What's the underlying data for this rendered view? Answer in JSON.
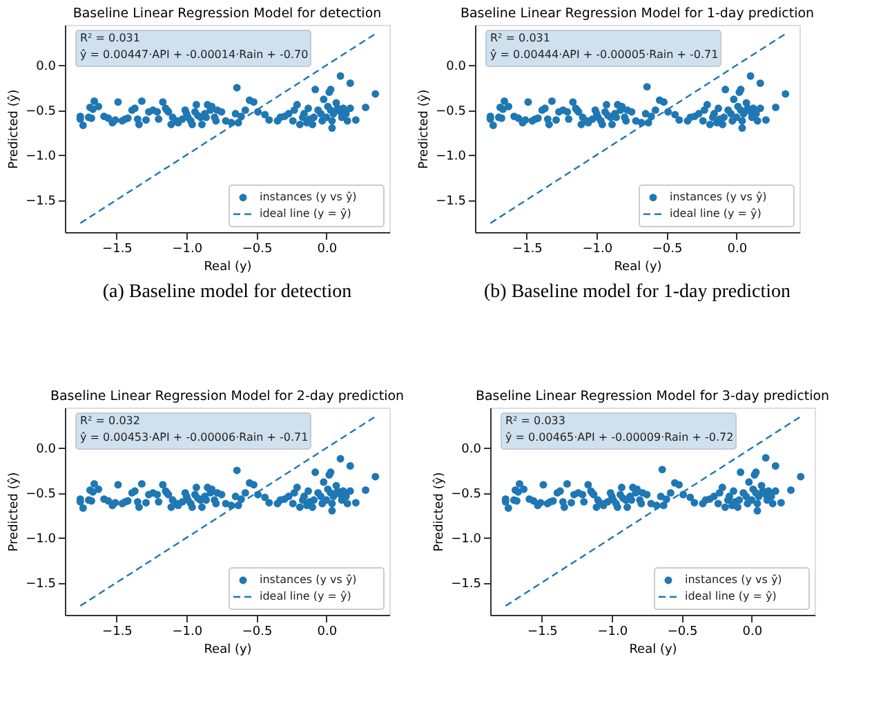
{
  "chart_data": [
    {
      "type": "scatter",
      "title": "Baseline Linear Regression Model for detection",
      "xlabel": "Real (y)",
      "ylabel": "Predicted (ŷ)",
      "xlim": [
        -1.87,
        0.45
      ],
      "ylim": [
        -1.86,
        0.45
      ],
      "xticks": [
        {
          "value": -1.5,
          "label": "−1.5"
        },
        {
          "value": -1.0,
          "label": "−1.0"
        },
        {
          "value": -0.5,
          "label": "−0.5"
        },
        {
          "value": 0,
          "label": "0.0"
        }
      ],
      "yticks": [
        {
          "value": 0,
          "label": "0.0"
        },
        {
          "value": -0.5,
          "label": "−0.5"
        },
        {
          "value": -1.0,
          "label": "−1.0"
        },
        {
          "value": -1.5,
          "label": "−1.5"
        }
      ],
      "legend": "bottom right",
      "grid": false,
      "annotations": [
        "R² = 0.031",
        "ŷ = 0.00447·API + -0.00014·Rain + -0.70",
        "(a) Baseline model for detection"
      ],
      "series": [
        {
          "name": "instances (y vs ŷ)",
          "type": "scatter",
          "color": "#1f77b4",
          "marker": "circle",
          "x": [
            -1.76,
            -1.74,
            -1.76,
            -1.7,
            -1.68,
            -1.66,
            -1.69,
            -1.67,
            -1.63,
            -1.59,
            -1.56,
            -1.53,
            -1.49,
            -1.51,
            -1.46,
            -1.44,
            -1.42,
            -1.39,
            -1.37,
            -1.35,
            -1.34,
            -1.32,
            -1.29,
            -1.27,
            -1.24,
            -1.21,
            -1.2,
            -1.17,
            -1.15,
            -1.14,
            -1.13,
            -1.11,
            -1.1,
            -1.07,
            -1.06,
            -1.03,
            -1.01,
            -1.0,
            -0.99,
            -0.97,
            -0.96,
            -0.94,
            -0.93,
            -0.92,
            -0.9,
            -0.89,
            -0.87,
            -0.86,
            -0.85,
            -0.83,
            -0.82,
            -0.8,
            -0.79,
            -0.78,
            -0.75,
            -0.72,
            -0.68,
            -0.65,
            -0.64,
            -0.63,
            -0.61,
            -0.58,
            -0.55,
            -0.52,
            -0.49,
            -0.44,
            -0.41,
            -0.35,
            -0.33,
            -0.3,
            -0.27,
            -0.24,
            -0.23,
            -0.21,
            -0.19,
            -0.17,
            -0.16,
            -0.14,
            -0.13,
            -0.12,
            -0.1,
            -0.09,
            -0.08,
            -0.06,
            -0.04,
            -0.03,
            -0.02,
            0.0,
            0.01,
            0.02,
            0.03,
            0.03,
            0.04,
            0.04,
            0.05,
            0.07,
            0.08,
            0.1,
            0.1,
            0.11,
            0.12,
            0.14,
            0.15,
            0.17,
            0.17,
            0.21,
            0.28,
            0.35
          ],
          "values": [
            -0.57,
            -0.67,
            -0.6,
            -0.58,
            -0.59,
            -0.4,
            -0.47,
            -0.49,
            -0.46,
            -0.57,
            -0.59,
            -0.64,
            -0.41,
            -0.61,
            -0.62,
            -0.6,
            -0.59,
            -0.5,
            -0.48,
            -0.6,
            -0.66,
            -0.4,
            -0.61,
            -0.52,
            -0.5,
            -0.52,
            -0.6,
            -0.41,
            -0.48,
            -0.5,
            -0.52,
            -0.66,
            -0.58,
            -0.62,
            -0.64,
            -0.6,
            -0.5,
            -0.54,
            -0.58,
            -0.62,
            -0.66,
            -0.52,
            -0.44,
            -0.56,
            -0.58,
            -0.66,
            -0.54,
            -0.58,
            -0.44,
            -0.5,
            -0.46,
            -0.58,
            -0.62,
            -0.5,
            -0.52,
            -0.62,
            -0.64,
            -0.54,
            -0.25,
            -0.64,
            -0.57,
            -0.5,
            -0.39,
            -0.41,
            -0.52,
            -0.55,
            -0.61,
            -0.62,
            -0.58,
            -0.57,
            -0.54,
            -0.62,
            -0.5,
            -0.44,
            -0.66,
            -0.58,
            -0.54,
            -0.64,
            -0.48,
            -0.6,
            -0.66,
            -0.58,
            -0.27,
            -0.5,
            -0.54,
            -0.62,
            -0.38,
            -0.58,
            -0.46,
            -0.3,
            -0.5,
            -0.27,
            -0.62,
            -0.7,
            -0.54,
            -0.42,
            -0.48,
            -0.52,
            -0.12,
            -0.58,
            -0.48,
            -0.54,
            -0.62,
            -0.48,
            -0.2,
            -0.61,
            -0.47,
            -0.32
          ]
        },
        {
          "name": "ideal line (y = ŷ)",
          "type": "line",
          "color": "#1f77b4",
          "line_style": "dashed",
          "x": [
            -1.76,
            0.35
          ],
          "values": [
            -1.76,
            0.35
          ]
        }
      ]
    },
    {
      "type": "scatter",
      "title": "Baseline Linear Regression Model for 1-day prediction",
      "xlabel": "Real (y)",
      "ylabel": "Predicted (ŷ)",
      "xlim": [
        -1.87,
        0.45
      ],
      "ylim": [
        -1.86,
        0.45
      ],
      "xticks": [
        {
          "value": -1.5,
          "label": "−1.5"
        },
        {
          "value": -1.0,
          "label": "−1.0"
        },
        {
          "value": -0.5,
          "label": "−0.5"
        },
        {
          "value": 0,
          "label": "0.0"
        }
      ],
      "yticks": [
        {
          "value": 0,
          "label": "0.0"
        },
        {
          "value": -0.5,
          "label": "−0.5"
        },
        {
          "value": -1.0,
          "label": "−1.0"
        },
        {
          "value": -1.5,
          "label": "−1.5"
        }
      ],
      "legend": "bottom right",
      "grid": false,
      "annotations": [
        "R² = 0.031",
        "ŷ = 0.00444·API + -0.00005·Rain + -0.71",
        "(b) Baseline model for 1-day prediction"
      ],
      "series": [
        {
          "name": "instances (y vs ŷ)",
          "type": "scatter",
          "color": "#1f77b4",
          "marker": "circle",
          "x": [
            -1.76,
            -1.74,
            -1.76,
            -1.7,
            -1.68,
            -1.66,
            -1.69,
            -1.67,
            -1.63,
            -1.59,
            -1.56,
            -1.53,
            -1.49,
            -1.51,
            -1.46,
            -1.44,
            -1.42,
            -1.39,
            -1.37,
            -1.35,
            -1.34,
            -1.32,
            -1.29,
            -1.27,
            -1.24,
            -1.21,
            -1.2,
            -1.17,
            -1.15,
            -1.14,
            -1.13,
            -1.11,
            -1.1,
            -1.07,
            -1.06,
            -1.03,
            -1.01,
            -1.0,
            -0.99,
            -0.97,
            -0.96,
            -0.94,
            -0.93,
            -0.92,
            -0.9,
            -0.89,
            -0.87,
            -0.86,
            -0.85,
            -0.83,
            -0.82,
            -0.8,
            -0.79,
            -0.78,
            -0.75,
            -0.72,
            -0.68,
            -0.65,
            -0.64,
            -0.63,
            -0.61,
            -0.58,
            -0.55,
            -0.52,
            -0.49,
            -0.44,
            -0.41,
            -0.35,
            -0.33,
            -0.3,
            -0.27,
            -0.24,
            -0.23,
            -0.21,
            -0.19,
            -0.17,
            -0.16,
            -0.14,
            -0.13,
            -0.12,
            -0.1,
            -0.09,
            -0.08,
            -0.06,
            -0.04,
            -0.03,
            -0.02,
            0.0,
            0.01,
            0.02,
            0.03,
            0.03,
            0.04,
            0.04,
            0.05,
            0.07,
            0.08,
            0.1,
            0.1,
            0.11,
            0.12,
            0.14,
            0.15,
            0.17,
            0.17,
            0.21,
            0.28,
            0.35
          ],
          "values": [
            -0.57,
            -0.67,
            -0.6,
            -0.58,
            -0.59,
            -0.4,
            -0.47,
            -0.49,
            -0.46,
            -0.57,
            -0.59,
            -0.64,
            -0.41,
            -0.61,
            -0.62,
            -0.6,
            -0.59,
            -0.5,
            -0.48,
            -0.6,
            -0.66,
            -0.4,
            -0.61,
            -0.52,
            -0.5,
            -0.52,
            -0.6,
            -0.41,
            -0.48,
            -0.5,
            -0.52,
            -0.66,
            -0.58,
            -0.62,
            -0.64,
            -0.6,
            -0.5,
            -0.54,
            -0.58,
            -0.62,
            -0.66,
            -0.52,
            -0.44,
            -0.56,
            -0.58,
            -0.66,
            -0.54,
            -0.58,
            -0.44,
            -0.5,
            -0.46,
            -0.58,
            -0.62,
            -0.5,
            -0.52,
            -0.62,
            -0.64,
            -0.54,
            -0.24,
            -0.64,
            -0.57,
            -0.5,
            -0.39,
            -0.41,
            -0.52,
            -0.55,
            -0.61,
            -0.62,
            -0.58,
            -0.57,
            -0.54,
            -0.62,
            -0.5,
            -0.44,
            -0.66,
            -0.58,
            -0.54,
            -0.64,
            -0.48,
            -0.6,
            -0.66,
            -0.58,
            -0.27,
            -0.5,
            -0.54,
            -0.62,
            -0.38,
            -0.58,
            -0.46,
            -0.3,
            -0.5,
            -0.27,
            -0.62,
            -0.7,
            -0.54,
            -0.42,
            -0.48,
            -0.52,
            -0.12,
            -0.58,
            -0.48,
            -0.54,
            -0.62,
            -0.48,
            -0.2,
            -0.61,
            -0.47,
            -0.32
          ]
        },
        {
          "name": "ideal line (y = ŷ)",
          "type": "line",
          "color": "#1f77b4",
          "line_style": "dashed",
          "x": [
            -1.76,
            0.35
          ],
          "values": [
            -1.76,
            0.35
          ]
        }
      ]
    },
    {
      "type": "scatter",
      "title": "Baseline Linear Regression Model for 2-day prediction",
      "xlabel": "Real (y)",
      "ylabel": "Predicted (ŷ)",
      "xlim": [
        -1.87,
        0.45
      ],
      "ylim": [
        -1.86,
        0.45
      ],
      "xticks": [
        {
          "value": -1.5,
          "label": "−1.5"
        },
        {
          "value": -1.0,
          "label": "−1.0"
        },
        {
          "value": -0.5,
          "label": "−0.5"
        },
        {
          "value": 0,
          "label": "0.0"
        }
      ],
      "yticks": [
        {
          "value": 0,
          "label": "0.0"
        },
        {
          "value": -0.5,
          "label": "−0.5"
        },
        {
          "value": -1.0,
          "label": "−1.0"
        },
        {
          "value": -1.5,
          "label": "−1.5"
        }
      ],
      "legend": "bottom right",
      "grid": false,
      "annotations": [
        "R² = 0.032",
        "ŷ = 0.00453·API + -0.00006·Rain + -0.71"
      ],
      "series": [
        {
          "name": "instances (y vs ŷ)",
          "type": "scatter",
          "color": "#1f77b4",
          "marker": "circle",
          "x": [
            -1.76,
            -1.74,
            -1.76,
            -1.7,
            -1.68,
            -1.66,
            -1.69,
            -1.67,
            -1.63,
            -1.59,
            -1.56,
            -1.53,
            -1.49,
            -1.51,
            -1.46,
            -1.44,
            -1.42,
            -1.39,
            -1.37,
            -1.35,
            -1.34,
            -1.32,
            -1.29,
            -1.27,
            -1.24,
            -1.21,
            -1.2,
            -1.17,
            -1.15,
            -1.14,
            -1.13,
            -1.11,
            -1.1,
            -1.07,
            -1.06,
            -1.03,
            -1.01,
            -1.0,
            -0.99,
            -0.97,
            -0.96,
            -0.94,
            -0.93,
            -0.92,
            -0.9,
            -0.89,
            -0.87,
            -0.86,
            -0.85,
            -0.83,
            -0.82,
            -0.8,
            -0.79,
            -0.78,
            -0.75,
            -0.72,
            -0.68,
            -0.65,
            -0.64,
            -0.63,
            -0.61,
            -0.58,
            -0.55,
            -0.52,
            -0.49,
            -0.44,
            -0.41,
            -0.35,
            -0.33,
            -0.3,
            -0.27,
            -0.24,
            -0.23,
            -0.21,
            -0.19,
            -0.17,
            -0.16,
            -0.14,
            -0.13,
            -0.12,
            -0.1,
            -0.09,
            -0.08,
            -0.06,
            -0.04,
            -0.03,
            -0.02,
            0.0,
            0.01,
            0.02,
            0.03,
            0.03,
            0.04,
            0.04,
            0.05,
            0.07,
            0.08,
            0.1,
            0.1,
            0.11,
            0.12,
            0.14,
            0.15,
            0.17,
            0.17,
            0.21,
            0.28,
            0.35
          ],
          "values": [
            -0.57,
            -0.67,
            -0.6,
            -0.58,
            -0.59,
            -0.4,
            -0.47,
            -0.49,
            -0.46,
            -0.57,
            -0.59,
            -0.64,
            -0.41,
            -0.61,
            -0.62,
            -0.6,
            -0.59,
            -0.5,
            -0.48,
            -0.6,
            -0.66,
            -0.4,
            -0.61,
            -0.52,
            -0.5,
            -0.52,
            -0.6,
            -0.41,
            -0.48,
            -0.5,
            -0.52,
            -0.66,
            -0.58,
            -0.62,
            -0.64,
            -0.6,
            -0.5,
            -0.54,
            -0.58,
            -0.62,
            -0.66,
            -0.52,
            -0.44,
            -0.56,
            -0.58,
            -0.66,
            -0.54,
            -0.58,
            -0.44,
            -0.5,
            -0.46,
            -0.58,
            -0.62,
            -0.5,
            -0.52,
            -0.62,
            -0.64,
            -0.54,
            -0.25,
            -0.64,
            -0.57,
            -0.5,
            -0.39,
            -0.41,
            -0.52,
            -0.55,
            -0.61,
            -0.62,
            -0.58,
            -0.57,
            -0.54,
            -0.62,
            -0.5,
            -0.44,
            -0.66,
            -0.58,
            -0.54,
            -0.64,
            -0.48,
            -0.6,
            -0.66,
            -0.58,
            -0.27,
            -0.5,
            -0.54,
            -0.62,
            -0.38,
            -0.58,
            -0.46,
            -0.3,
            -0.5,
            -0.27,
            -0.62,
            -0.7,
            -0.54,
            -0.42,
            -0.48,
            -0.52,
            -0.12,
            -0.58,
            -0.48,
            -0.54,
            -0.62,
            -0.48,
            -0.2,
            -0.61,
            -0.47,
            -0.32
          ]
        },
        {
          "name": "ideal line (y = ŷ)",
          "type": "line",
          "color": "#1f77b4",
          "line_style": "dashed",
          "x": [
            -1.76,
            0.35
          ],
          "values": [
            -1.76,
            0.35
          ]
        }
      ]
    },
    {
      "type": "scatter",
      "title": "Baseline Linear Regression Model for 3-day prediction",
      "xlabel": "Real (y)",
      "ylabel": "Predicted (ŷ)",
      "xlim": [
        -1.87,
        0.45
      ],
      "ylim": [
        -1.86,
        0.45
      ],
      "xticks": [
        {
          "value": -1.5,
          "label": "−1.5"
        },
        {
          "value": -1.0,
          "label": "−1.0"
        },
        {
          "value": -0.5,
          "label": "−0.5"
        },
        {
          "value": 0,
          "label": "0.0"
        }
      ],
      "yticks": [
        {
          "value": 0,
          "label": "0.0"
        },
        {
          "value": -0.5,
          "label": "−0.5"
        },
        {
          "value": -1.0,
          "label": "−1.0"
        },
        {
          "value": -1.5,
          "label": "−1.5"
        }
      ],
      "legend": "bottom right",
      "grid": false,
      "annotations": [
        "R² = 0.033",
        "ŷ = 0.00465·API + -0.00009·Rain + -0.72"
      ],
      "series": [
        {
          "name": "instances (y vs ŷ)",
          "type": "scatter",
          "color": "#1f77b4",
          "marker": "circle",
          "x": [
            -1.76,
            -1.74,
            -1.76,
            -1.7,
            -1.68,
            -1.66,
            -1.69,
            -1.67,
            -1.63,
            -1.59,
            -1.56,
            -1.53,
            -1.49,
            -1.51,
            -1.46,
            -1.44,
            -1.42,
            -1.39,
            -1.37,
            -1.35,
            -1.34,
            -1.32,
            -1.29,
            -1.27,
            -1.24,
            -1.21,
            -1.2,
            -1.17,
            -1.15,
            -1.14,
            -1.13,
            -1.11,
            -1.1,
            -1.07,
            -1.06,
            -1.03,
            -1.01,
            -1.0,
            -0.99,
            -0.97,
            -0.96,
            -0.94,
            -0.93,
            -0.92,
            -0.9,
            -0.89,
            -0.87,
            -0.86,
            -0.85,
            -0.83,
            -0.82,
            -0.8,
            -0.79,
            -0.78,
            -0.75,
            -0.72,
            -0.68,
            -0.65,
            -0.64,
            -0.63,
            -0.61,
            -0.58,
            -0.55,
            -0.52,
            -0.49,
            -0.44,
            -0.41,
            -0.35,
            -0.33,
            -0.3,
            -0.27,
            -0.24,
            -0.23,
            -0.21,
            -0.19,
            -0.17,
            -0.16,
            -0.14,
            -0.13,
            -0.12,
            -0.1,
            -0.09,
            -0.08,
            -0.06,
            -0.04,
            -0.03,
            -0.02,
            0.0,
            0.01,
            0.02,
            0.03,
            0.03,
            0.04,
            0.04,
            0.05,
            0.07,
            0.08,
            0.1,
            0.1,
            0.11,
            0.12,
            0.14,
            0.15,
            0.17,
            0.17,
            0.21,
            0.28,
            0.35
          ],
          "values": [
            -0.57,
            -0.67,
            -0.6,
            -0.58,
            -0.59,
            -0.4,
            -0.47,
            -0.49,
            -0.46,
            -0.57,
            -0.59,
            -0.64,
            -0.41,
            -0.61,
            -0.62,
            -0.6,
            -0.59,
            -0.5,
            -0.48,
            -0.6,
            -0.66,
            -0.4,
            -0.61,
            -0.52,
            -0.5,
            -0.52,
            -0.6,
            -0.41,
            -0.48,
            -0.5,
            -0.52,
            -0.66,
            -0.58,
            -0.62,
            -0.64,
            -0.6,
            -0.5,
            -0.54,
            -0.58,
            -0.62,
            -0.66,
            -0.52,
            -0.44,
            -0.56,
            -0.58,
            -0.66,
            -0.54,
            -0.58,
            -0.44,
            -0.5,
            -0.46,
            -0.58,
            -0.62,
            -0.5,
            -0.52,
            -0.62,
            -0.64,
            -0.54,
            -0.24,
            -0.64,
            -0.57,
            -0.5,
            -0.39,
            -0.41,
            -0.52,
            -0.55,
            -0.61,
            -0.62,
            -0.58,
            -0.57,
            -0.54,
            -0.62,
            -0.5,
            -0.44,
            -0.66,
            -0.58,
            -0.54,
            -0.64,
            -0.48,
            -0.6,
            -0.66,
            -0.58,
            -0.27,
            -0.5,
            -0.54,
            -0.62,
            -0.38,
            -0.58,
            -0.46,
            -0.3,
            -0.5,
            -0.27,
            -0.62,
            -0.7,
            -0.54,
            -0.42,
            -0.48,
            -0.52,
            -0.11,
            -0.58,
            -0.48,
            -0.54,
            -0.62,
            -0.48,
            -0.2,
            -0.61,
            -0.47,
            -0.32
          ]
        },
        {
          "name": "ideal line (y = ŷ)",
          "type": "line",
          "color": "#1f77b4",
          "line_style": "dashed",
          "x": [
            -1.76,
            0.35
          ],
          "values": [
            -1.76,
            0.35
          ]
        }
      ]
    }
  ]
}
